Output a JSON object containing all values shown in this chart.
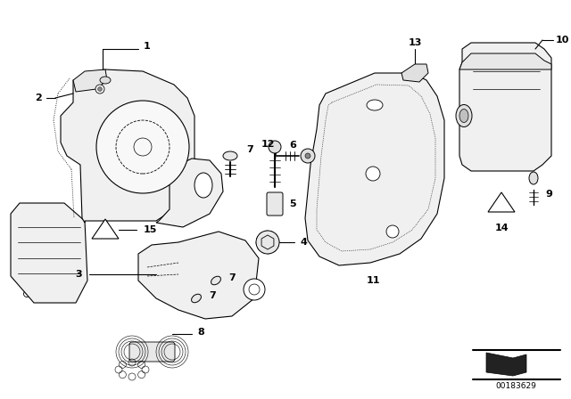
{
  "bg_color": "#ffffff",
  "line_color": "#000000",
  "part_number": "00183629",
  "fig_width": 6.4,
  "fig_height": 4.48,
  "dpi": 100
}
